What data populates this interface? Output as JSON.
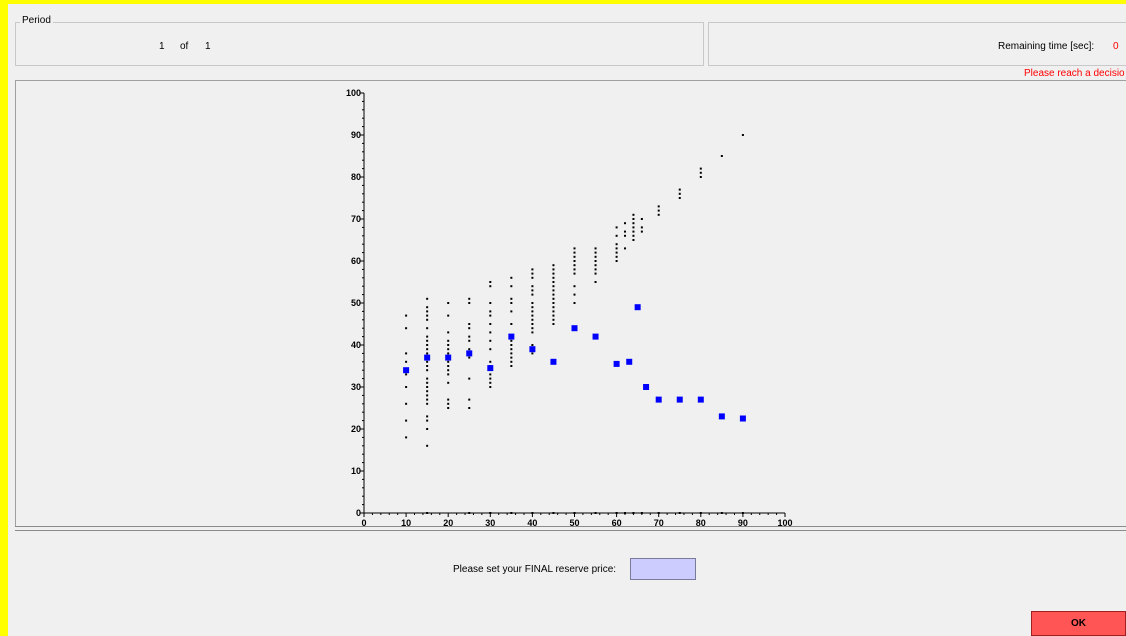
{
  "period": {
    "label": "Period",
    "current": "1",
    "of_label": "of",
    "total": "1"
  },
  "timer": {
    "label": "Remaining time [sec]:",
    "value": "0",
    "message": "Please reach a decisio"
  },
  "reserve": {
    "label": "Please set your FINAL reserve price:",
    "value": ""
  },
  "ok_label": "OK",
  "colors": {
    "highlight": "#ffff00",
    "alert": "#ff0000",
    "input_bg": "#ccccff",
    "ok_button": "#ff5555",
    "blue_points": "#0000ff"
  },
  "chart_data": {
    "type": "scatter",
    "xlim": [
      0,
      100
    ],
    "ylim": [
      0,
      100
    ],
    "x_ticks": [
      "0",
      "10",
      "20",
      "30",
      "40",
      "50",
      "60",
      "70",
      "80",
      "90",
      "100"
    ],
    "y_ticks": [
      "0",
      "10",
      "20",
      "30",
      "40",
      "50",
      "60",
      "70",
      "80",
      "90",
      "100"
    ],
    "series": [
      {
        "color": "#000000",
        "marker": "small-dot",
        "points": [
          [
            10,
            18
          ],
          [
            10,
            22
          ],
          [
            10,
            26
          ],
          [
            10,
            30
          ],
          [
            10,
            33
          ],
          [
            10,
            36
          ],
          [
            10,
            38
          ],
          [
            10,
            44
          ],
          [
            10,
            47
          ],
          [
            15,
            16
          ],
          [
            15,
            20
          ],
          [
            15,
            22
          ],
          [
            15,
            23
          ],
          [
            15,
            26
          ],
          [
            15,
            27
          ],
          [
            15,
            28
          ],
          [
            15,
            29
          ],
          [
            15,
            30
          ],
          [
            15,
            31
          ],
          [
            15,
            32
          ],
          [
            15,
            34
          ],
          [
            15,
            35
          ],
          [
            15,
            36
          ],
          [
            15,
            37
          ],
          [
            15,
            38
          ],
          [
            15,
            39
          ],
          [
            15,
            40
          ],
          [
            15,
            41
          ],
          [
            15,
            42
          ],
          [
            15,
            44
          ],
          [
            15,
            46
          ],
          [
            15,
            47
          ],
          [
            15,
            48
          ],
          [
            15,
            49
          ],
          [
            15,
            51
          ],
          [
            20,
            25
          ],
          [
            20,
            26
          ],
          [
            20,
            27
          ],
          [
            20,
            31
          ],
          [
            20,
            33
          ],
          [
            20,
            34
          ],
          [
            20,
            35
          ],
          [
            20,
            36
          ],
          [
            20,
            37
          ],
          [
            20,
            38
          ],
          [
            20,
            39
          ],
          [
            20,
            40
          ],
          [
            20,
            41
          ],
          [
            20,
            43
          ],
          [
            20,
            47
          ],
          [
            20,
            50
          ],
          [
            25,
            25
          ],
          [
            25,
            27
          ],
          [
            25,
            32
          ],
          [
            25,
            37
          ],
          [
            25,
            39
          ],
          [
            25,
            41
          ],
          [
            25,
            42
          ],
          [
            25,
            44
          ],
          [
            25,
            45
          ],
          [
            25,
            50
          ],
          [
            25,
            51
          ],
          [
            30,
            30
          ],
          [
            30,
            31
          ],
          [
            30,
            32
          ],
          [
            30,
            33
          ],
          [
            30,
            35
          ],
          [
            30,
            36
          ],
          [
            30,
            39
          ],
          [
            30,
            41
          ],
          [
            30,
            43
          ],
          [
            30,
            45
          ],
          [
            30,
            47
          ],
          [
            30,
            48
          ],
          [
            30,
            50
          ],
          [
            30,
            54
          ],
          [
            30,
            55
          ],
          [
            35,
            35
          ],
          [
            35,
            36
          ],
          [
            35,
            37
          ],
          [
            35,
            38
          ],
          [
            35,
            39
          ],
          [
            35,
            40
          ],
          [
            35,
            41
          ],
          [
            35,
            42
          ],
          [
            35,
            45
          ],
          [
            35,
            48
          ],
          [
            35,
            50
          ],
          [
            35,
            51
          ],
          [
            35,
            54
          ],
          [
            35,
            56
          ],
          [
            40,
            38
          ],
          [
            40,
            40
          ],
          [
            40,
            43
          ],
          [
            40,
            44
          ],
          [
            40,
            45
          ],
          [
            40,
            46
          ],
          [
            40,
            47
          ],
          [
            40,
            48
          ],
          [
            40,
            49
          ],
          [
            40,
            50
          ],
          [
            40,
            52
          ],
          [
            40,
            53
          ],
          [
            40,
            54
          ],
          [
            40,
            56
          ],
          [
            40,
            57
          ],
          [
            40,
            58
          ],
          [
            45,
            45
          ],
          [
            45,
            46
          ],
          [
            45,
            47
          ],
          [
            45,
            48
          ],
          [
            45,
            49
          ],
          [
            45,
            50
          ],
          [
            45,
            51
          ],
          [
            45,
            52
          ],
          [
            45,
            53
          ],
          [
            45,
            54
          ],
          [
            45,
            55
          ],
          [
            45,
            56
          ],
          [
            45,
            57
          ],
          [
            45,
            58
          ],
          [
            45,
            59
          ],
          [
            50,
            50
          ],
          [
            50,
            52
          ],
          [
            50,
            54
          ],
          [
            50,
            57
          ],
          [
            50,
            58
          ],
          [
            50,
            59
          ],
          [
            50,
            60
          ],
          [
            50,
            61
          ],
          [
            50,
            62
          ],
          [
            50,
            63
          ],
          [
            55,
            55
          ],
          [
            55,
            57
          ],
          [
            55,
            58
          ],
          [
            55,
            59
          ],
          [
            55,
            60
          ],
          [
            55,
            61
          ],
          [
            55,
            62
          ],
          [
            55,
            63
          ],
          [
            60,
            60
          ],
          [
            60,
            61
          ],
          [
            60,
            62
          ],
          [
            60,
            63
          ],
          [
            60,
            64
          ],
          [
            60,
            66
          ],
          [
            60,
            68
          ],
          [
            62,
            63
          ],
          [
            62,
            66
          ],
          [
            62,
            67
          ],
          [
            62,
            69
          ],
          [
            64,
            65
          ],
          [
            64,
            66
          ],
          [
            64,
            67
          ],
          [
            64,
            68
          ],
          [
            64,
            69
          ],
          [
            64,
            70
          ],
          [
            64,
            71
          ],
          [
            66,
            67
          ],
          [
            66,
            68
          ],
          [
            66,
            70
          ],
          [
            70,
            71
          ],
          [
            70,
            72
          ],
          [
            70,
            73
          ],
          [
            75,
            75
          ],
          [
            75,
            76
          ],
          [
            75,
            77
          ],
          [
            80,
            80
          ],
          [
            80,
            81
          ],
          [
            80,
            82
          ],
          [
            85,
            85
          ],
          [
            90,
            90
          ],
          [
            15,
            0
          ],
          [
            25,
            0
          ],
          [
            30,
            0
          ],
          [
            35,
            0
          ],
          [
            40,
            0
          ],
          [
            45,
            0
          ],
          [
            50,
            0
          ],
          [
            55,
            0
          ],
          [
            60,
            0
          ],
          [
            62,
            0
          ],
          [
            64,
            0
          ],
          [
            66,
            0
          ],
          [
            70,
            0
          ],
          [
            75,
            0
          ],
          [
            80,
            0
          ],
          [
            85,
            0
          ],
          [
            90,
            0
          ]
        ]
      },
      {
        "color": "#0000ff",
        "marker": "square",
        "points": [
          [
            10,
            34
          ],
          [
            15,
            37
          ],
          [
            20,
            37
          ],
          [
            25,
            38
          ],
          [
            30,
            34.5
          ],
          [
            35,
            42
          ],
          [
            40,
            39
          ],
          [
            45,
            36
          ],
          [
            50,
            44
          ],
          [
            55,
            42
          ],
          [
            60,
            35.5
          ],
          [
            63,
            36
          ],
          [
            65,
            49
          ],
          [
            67,
            30
          ],
          [
            70,
            27
          ],
          [
            75,
            27
          ],
          [
            80,
            27
          ],
          [
            85,
            23
          ],
          [
            90,
            22.5
          ]
        ]
      }
    ]
  }
}
